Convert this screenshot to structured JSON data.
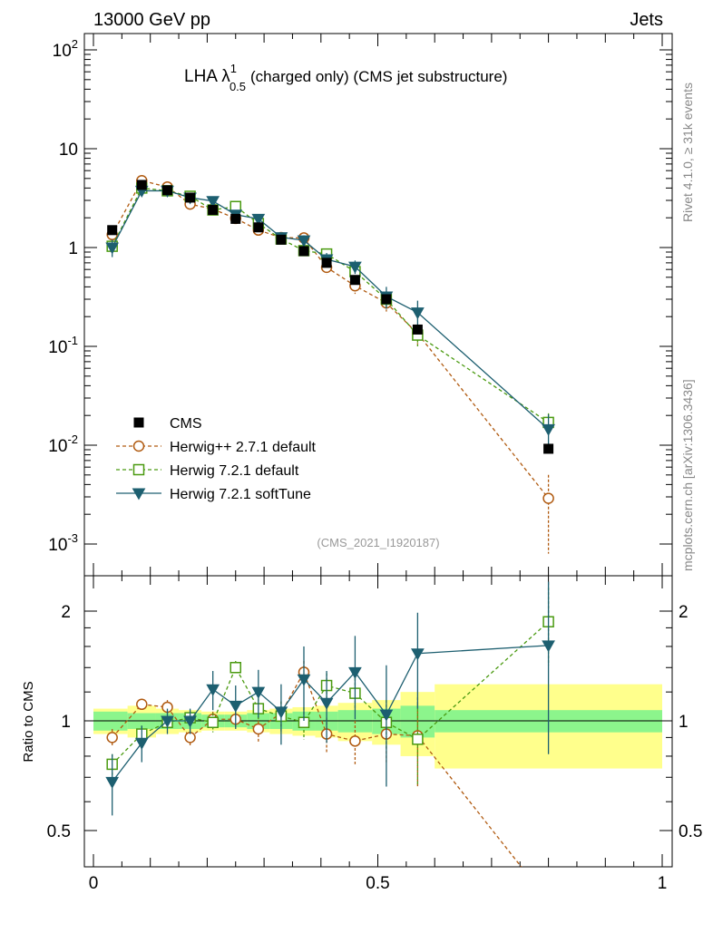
{
  "header": {
    "energy": "13000 GeV pp",
    "category": "Jets"
  },
  "side": {
    "rivet": "Rivet 4.1.0, ≥ 31k events",
    "mcplots": "mcplots.cern.ch [arXiv:1306.3436]"
  },
  "chart_data": {
    "type": "scatter",
    "title_main": "LHA λ",
    "title_sup": "1",
    "title_sub": "0.5",
    "title_rest": "(charged only) (CMS jet substructure)",
    "analysis_id": "(CMS_2021_I1920187)",
    "x": [
      0.033,
      0.085,
      0.13,
      0.17,
      0.21,
      0.25,
      0.29,
      0.33,
      0.37,
      0.41,
      0.46,
      0.515,
      0.57,
      0.8
    ],
    "xlim": [
      0,
      1
    ],
    "xticks": [
      "0",
      "0.5",
      "1"
    ],
    "main_ylim": [
      0.0007,
      160
    ],
    "main_yticks": [
      "10^-3",
      "10^-2",
      "10^-1",
      "1",
      "10",
      "10^2"
    ],
    "ratio_ylim": [
      0.45,
      2.3
    ],
    "ratio_yticks": [
      "0.5",
      "1",
      "2"
    ],
    "ratio_ylabel": "Ratio to CMS",
    "series": [
      {
        "name": "CMS",
        "color": "#000000",
        "values": [
          1.5,
          4.3,
          3.8,
          3.2,
          2.4,
          1.95,
          1.6,
          1.2,
          0.92,
          0.7,
          0.47,
          0.3,
          0.148,
          0.0092
        ]
      },
      {
        "name": "Herwig++ 2.7.1 default",
        "color": "#b05a10",
        "values": [
          1.35,
          4.75,
          4.1,
          2.75,
          2.45,
          1.97,
          1.5,
          1.26,
          1.25,
          0.63,
          0.41,
          0.275,
          0.135,
          0.0029
        ],
        "errors": [
          0.15,
          0.3,
          0.2,
          0.15,
          0.12,
          0.1,
          0.15,
          0.12,
          0.15,
          0.1,
          0.07,
          0.05,
          0.03,
          0.0021
        ],
        "ratios": [
          0.9,
          1.11,
          1.09,
          0.9,
          1.01,
          1.01,
          0.95,
          1.05,
          1.36,
          0.92,
          0.88,
          0.92,
          0.91,
          0.32
        ],
        "ratio_errors": [
          0.05,
          0.03,
          0.05,
          0.05,
          0.05,
          0.05,
          0.08,
          0.08,
          0.1,
          0.1,
          0.12,
          0.15,
          0.25,
          0
        ]
      },
      {
        "name": "Herwig 7.2.1 default",
        "color": "#4a9a10",
        "values": [
          1.03,
          4.0,
          3.75,
          3.3,
          2.4,
          2.6,
          1.75,
          1.22,
          0.93,
          0.86,
          0.57,
          0.3,
          0.13,
          0.017
        ],
        "errors": [
          0.1,
          0.2,
          0.2,
          0.15,
          0.12,
          0.15,
          0.15,
          0.12,
          0.1,
          0.1,
          0.08,
          0.06,
          0.03,
          0.004
        ],
        "ratios": [
          0.76,
          0.92,
          0.99,
          1.02,
          0.99,
          1.4,
          1.08,
          1.03,
          0.99,
          1.25,
          1.19,
          0.99,
          0.89,
          1.87
        ],
        "ratio_errors": [
          0.05,
          0.05,
          0.04,
          0.05,
          0.06,
          0.06,
          0.07,
          0.1,
          0.1,
          0.1,
          0.12,
          0.15,
          0.22,
          0.45
        ]
      },
      {
        "name": "Herwig 7.2.1 softTune",
        "color": "#1d5f70",
        "values": [
          1.0,
          3.75,
          3.75,
          3.2,
          2.95,
          2.15,
          1.95,
          1.27,
          1.18,
          0.76,
          0.64,
          0.32,
          0.22,
          0.0145
        ],
        "errors": [
          0.2,
          0.2,
          0.2,
          0.2,
          0.15,
          0.15,
          0.15,
          0.15,
          0.15,
          0.12,
          0.1,
          0.08,
          0.07,
          0.006
        ],
        "ratios": [
          0.68,
          0.87,
          1.0,
          1.0,
          1.22,
          1.1,
          1.2,
          1.06,
          1.3,
          1.12,
          1.36,
          1.04,
          1.53,
          1.61
        ],
        "ratio_errors": [
          0.13,
          0.1,
          0.08,
          0.08,
          0.15,
          0.15,
          0.18,
          0.2,
          0.3,
          0.25,
          0.35,
          0.38,
          0.45,
          0.8
        ]
      }
    ],
    "bands": [
      {
        "x0": 0.0,
        "x1": 0.06,
        "inner": 0.06,
        "outer": 0.08
      },
      {
        "x0": 0.06,
        "x1": 0.11,
        "inner": 0.05,
        "outer": 0.1
      },
      {
        "x0": 0.11,
        "x1": 0.15,
        "inner": 0.05,
        "outer": 0.08
      },
      {
        "x0": 0.15,
        "x1": 0.19,
        "inner": 0.05,
        "outer": 0.07
      },
      {
        "x0": 0.19,
        "x1": 0.23,
        "inner": 0.04,
        "outer": 0.06
      },
      {
        "x0": 0.23,
        "x1": 0.27,
        "inner": 0.04,
        "outer": 0.06
      },
      {
        "x0": 0.27,
        "x1": 0.31,
        "inner": 0.05,
        "outer": 0.07
      },
      {
        "x0": 0.31,
        "x1": 0.35,
        "inner": 0.05,
        "outer": 0.08
      },
      {
        "x0": 0.35,
        "x1": 0.39,
        "inner": 0.06,
        "outer": 0.09
      },
      {
        "x0": 0.39,
        "x1": 0.43,
        "inner": 0.06,
        "outer": 0.1
      },
      {
        "x0": 0.43,
        "x1": 0.49,
        "inner": 0.07,
        "outer": 0.12
      },
      {
        "x0": 0.49,
        "x1": 0.54,
        "inner": 0.08,
        "outer": 0.14
      },
      {
        "x0": 0.54,
        "x1": 0.6,
        "inner": 0.1,
        "outer": 0.2
      },
      {
        "x0": 0.6,
        "x1": 1.0,
        "inner": 0.07,
        "outer": 0.26
      }
    ]
  }
}
